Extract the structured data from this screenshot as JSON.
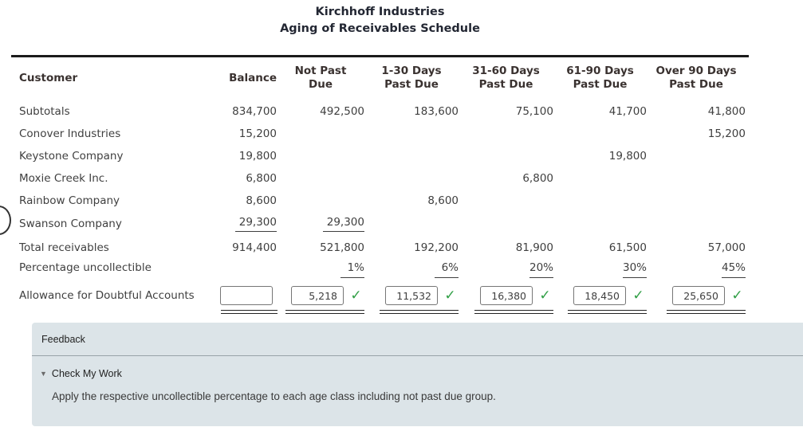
{
  "title": {
    "line1": "Kirchhoff Industries",
    "line2": "Aging of Receivables Schedule"
  },
  "table": {
    "headers": [
      {
        "key": "customer",
        "lines": [
          "Customer"
        ],
        "align": "left"
      },
      {
        "key": "balance",
        "lines": [
          "Balance"
        ],
        "align": "right"
      },
      {
        "key": "not-past-due",
        "lines": [
          "Not Past",
          "Due"
        ],
        "align": "center"
      },
      {
        "key": "1-30-days",
        "lines": [
          "1-30 Days",
          "Past Due"
        ],
        "align": "center"
      },
      {
        "key": "31-60-days",
        "lines": [
          "31-60 Days",
          "Past Due"
        ],
        "align": "center"
      },
      {
        "key": "61-90-days",
        "lines": [
          "61-90 Days",
          "Past Due"
        ],
        "align": "center"
      },
      {
        "key": "over-90-days",
        "lines": [
          "Over 90 Days",
          "Past Due"
        ],
        "align": "center"
      }
    ],
    "rows": [
      {
        "label": "Subtotals",
        "values": [
          "834,700",
          "492,500",
          "183,600",
          "75,100",
          "41,700",
          "41,800"
        ],
        "underline": []
      },
      {
        "label": "Conover Industries",
        "values": [
          "15,200",
          "",
          "",
          "",
          "",
          "15,200"
        ],
        "underline": []
      },
      {
        "label": "Keystone Company",
        "values": [
          "19,800",
          "",
          "",
          "",
          "19,800",
          ""
        ],
        "underline": []
      },
      {
        "label": "Moxie Creek Inc.",
        "values": [
          "6,800",
          "",
          "",
          "6,800",
          "",
          ""
        ],
        "underline": []
      },
      {
        "label": "Rainbow Company",
        "values": [
          "8,600",
          "",
          "8,600",
          "",
          "",
          ""
        ],
        "underline": []
      },
      {
        "label": "Swanson Company",
        "values": [
          "29,300",
          "29,300",
          "",
          "",
          "",
          ""
        ],
        "underline": [
          0,
          1
        ],
        "cls": "row-swanson"
      },
      {
        "label": "Total receivables",
        "values": [
          "914,400",
          "521,800",
          "192,200",
          "81,900",
          "61,500",
          "57,000"
        ],
        "underline": [],
        "cls": "row-total"
      },
      {
        "label": "Percentage uncollectible",
        "values": [
          "",
          "1%",
          "6%",
          "20%",
          "30%",
          "45%"
        ],
        "underline": [
          1,
          2,
          3,
          4,
          5
        ],
        "cls": "row-percent"
      }
    ],
    "allowance": {
      "label": "Allowance for Doubtful Accounts",
      "check_icon": "✓",
      "cells": [
        {
          "value": "",
          "checked": false
        },
        {
          "value": "5,218",
          "checked": true
        },
        {
          "value": "11,532",
          "checked": true
        },
        {
          "value": "16,380",
          "checked": true
        },
        {
          "value": "18,450",
          "checked": true
        },
        {
          "value": "25,650",
          "checked": true
        }
      ]
    }
  },
  "feedback": {
    "title": "Feedback",
    "toggle_icon": "▼",
    "check_my_work": "Check My Work",
    "message": "Apply the respective uncollectible percentage to each age class including not past due group."
  },
  "colors": {
    "title_text": "#232733",
    "header_text": "#3a3230",
    "body_text": "#3f3f3f",
    "check_green": "#2f9e44",
    "panel_bg": "#dce4e8",
    "panel_divider": "#98a2a8",
    "input_border": "#767676",
    "top_rule": "#1b1b1b"
  }
}
